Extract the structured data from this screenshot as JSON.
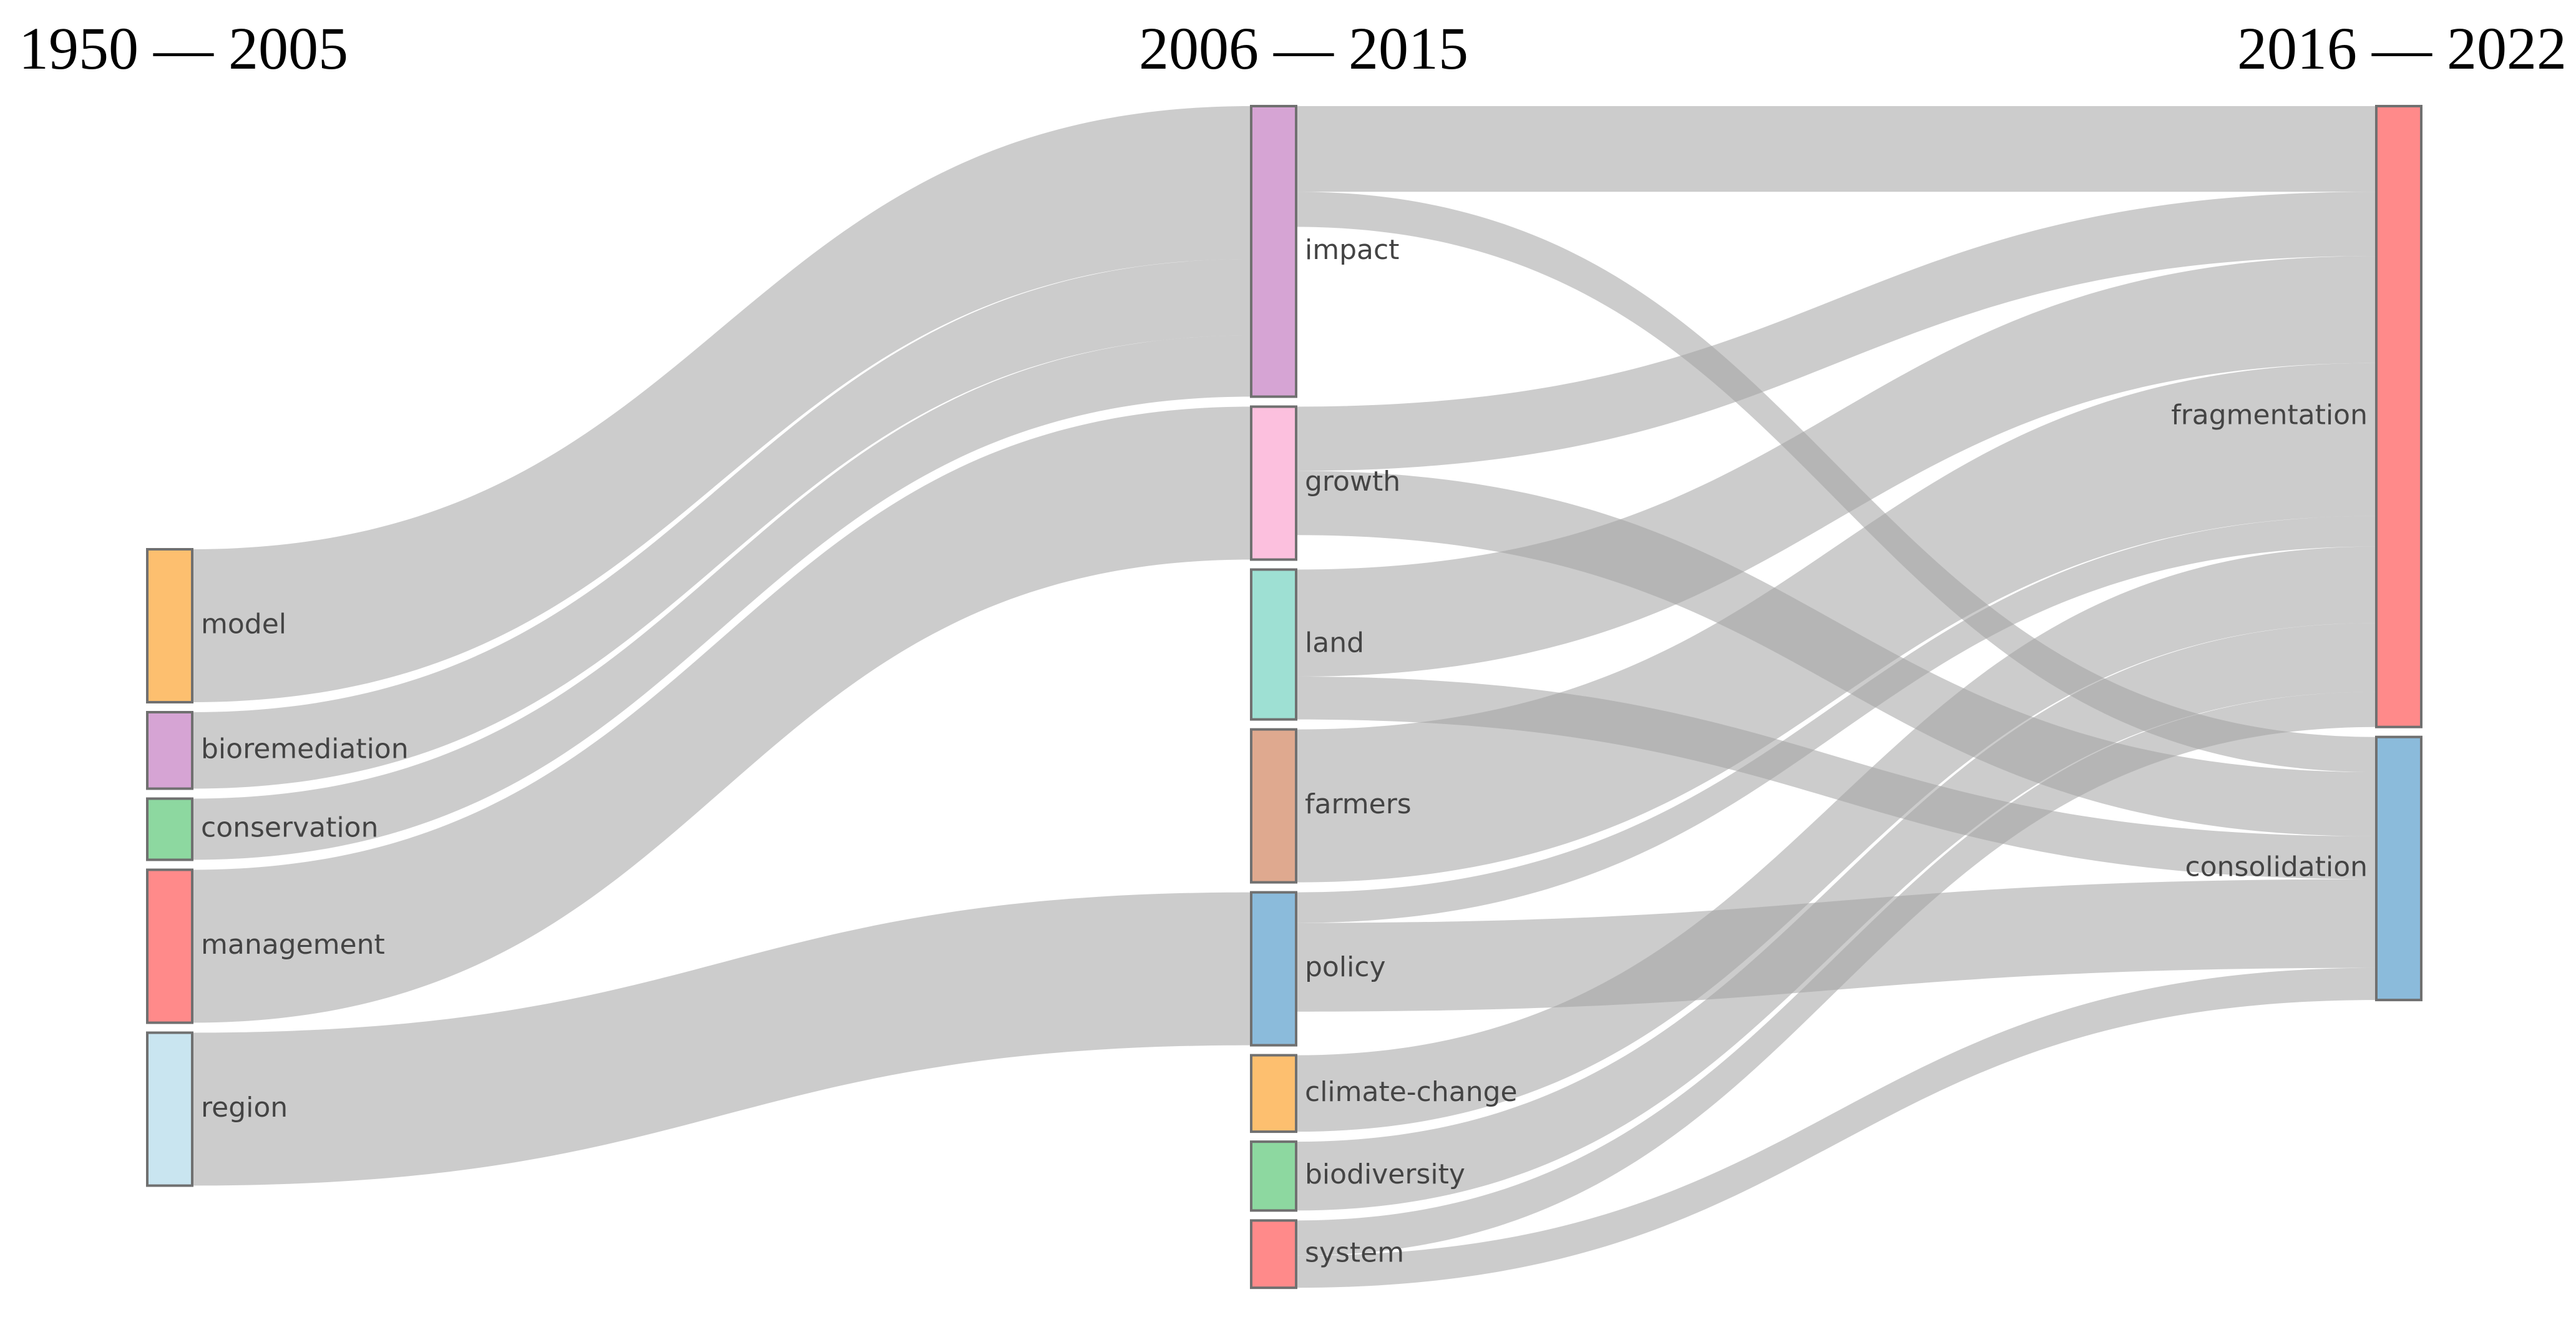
{
  "periods": [
    "1950 — 2005",
    "2006 — 2015",
    "2016 — 2022"
  ],
  "colors": {
    "link": "#a3a3a3",
    "model": "#fdbf6f",
    "bioremediation": "#d6a4d4",
    "conservation": "#8dd8a0",
    "management": "#ff8a8a",
    "region": "#c9e5f0",
    "impact": "#d6a4d4",
    "growth": "#fcc0de",
    "land": "#9ee0d3",
    "farmers": "#dfa98f",
    "policy": "#8bbbdb",
    "climate-change": "#fdbf6f",
    "biodiversity": "#8dd8a0",
    "system": "#ff8a8a",
    "fragmentation": "#ff8a8a",
    "consolidation": "#8bbbdb"
  },
  "nodes": [
    {
      "id": "model",
      "label": "model",
      "column": 0
    },
    {
      "id": "bioremediation",
      "label": "bioremediation",
      "column": 0
    },
    {
      "id": "conservation",
      "label": "conservation",
      "column": 0
    },
    {
      "id": "management",
      "label": "management",
      "column": 0
    },
    {
      "id": "region",
      "label": "region",
      "column": 0
    },
    {
      "id": "impact",
      "label": "impact",
      "column": 1
    },
    {
      "id": "growth",
      "label": "growth",
      "column": 1
    },
    {
      "id": "land",
      "label": "land",
      "column": 1
    },
    {
      "id": "farmers",
      "label": "farmers",
      "column": 1
    },
    {
      "id": "policy",
      "label": "policy",
      "column": 1
    },
    {
      "id": "climate-change",
      "label": "climate-change",
      "column": 1
    },
    {
      "id": "biodiversity",
      "label": "biodiversity",
      "column": 1
    },
    {
      "id": "system",
      "label": "system",
      "column": 1
    },
    {
      "id": "fragmentation",
      "label": "fragmentation",
      "column": 2
    },
    {
      "id": "consolidation",
      "label": "consolidation",
      "column": 2
    }
  ],
  "links": [
    {
      "source": "model",
      "target": "impact",
      "value": 10
    },
    {
      "source": "bioremediation",
      "target": "impact",
      "value": 5
    },
    {
      "source": "conservation",
      "target": "impact",
      "value": 4
    },
    {
      "source": "management",
      "target": "growth",
      "value": 10
    },
    {
      "source": "region",
      "target": "policy",
      "value": 10
    },
    {
      "source": "impact",
      "target": "fragmentation",
      "value": 5.6
    },
    {
      "source": "impact",
      "target": "consolidation",
      "value": 2.3
    },
    {
      "source": "growth",
      "target": "fragmentation",
      "value": 4.2
    },
    {
      "source": "growth",
      "target": "consolidation",
      "value": 4.2
    },
    {
      "source": "land",
      "target": "fragmentation",
      "value": 7
    },
    {
      "source": "land",
      "target": "consolidation",
      "value": 2.8
    },
    {
      "source": "farmers",
      "target": "fragmentation",
      "value": 10
    },
    {
      "source": "policy",
      "target": "fragmentation",
      "value": 2
    },
    {
      "source": "policy",
      "target": "consolidation",
      "value": 5.8
    },
    {
      "source": "climate-change",
      "target": "fragmentation",
      "value": 5
    },
    {
      "source": "biodiversity",
      "target": "fragmentation",
      "value": 4.5
    },
    {
      "source": "system",
      "target": "fragmentation",
      "value": 2.3
    },
    {
      "source": "system",
      "target": "consolidation",
      "value": 2.1
    }
  ]
}
